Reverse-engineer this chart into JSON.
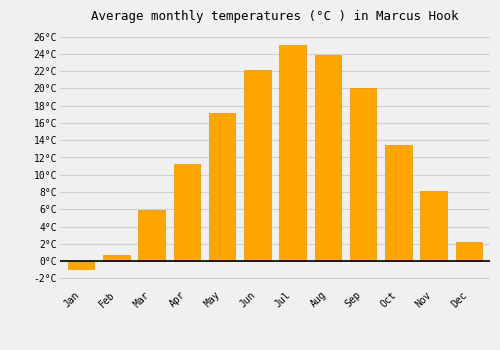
{
  "title": "Average monthly temperatures (°C ) in Marcus Hook",
  "months": [
    "Jan",
    "Feb",
    "Mar",
    "Apr",
    "May",
    "Jun",
    "Jul",
    "Aug",
    "Sep",
    "Oct",
    "Nov",
    "Dec"
  ],
  "values": [
    -0.9,
    0.7,
    5.9,
    11.3,
    17.1,
    22.1,
    25.0,
    23.9,
    20.0,
    13.5,
    8.1,
    2.2
  ],
  "bar_color": "#FFA500",
  "bar_edge_color": "#e69500",
  "ylim": [
    -3,
    27
  ],
  "yticks": [
    -2,
    0,
    2,
    4,
    6,
    8,
    10,
    12,
    14,
    16,
    18,
    20,
    22,
    24,
    26
  ],
  "ytick_labels": [
    "-2°C",
    "0°C",
    "2°C",
    "4°C",
    "6°C",
    "8°C",
    "10°C",
    "12°C",
    "14°C",
    "16°C",
    "18°C",
    "20°C",
    "22°C",
    "24°C",
    "26°C"
  ],
  "grid_color": "#d0d0d0",
  "background_color": "#f0f0f0",
  "title_fontsize": 9,
  "tick_fontsize": 7,
  "bar_width": 0.75,
  "zero_line_color": "#000000"
}
